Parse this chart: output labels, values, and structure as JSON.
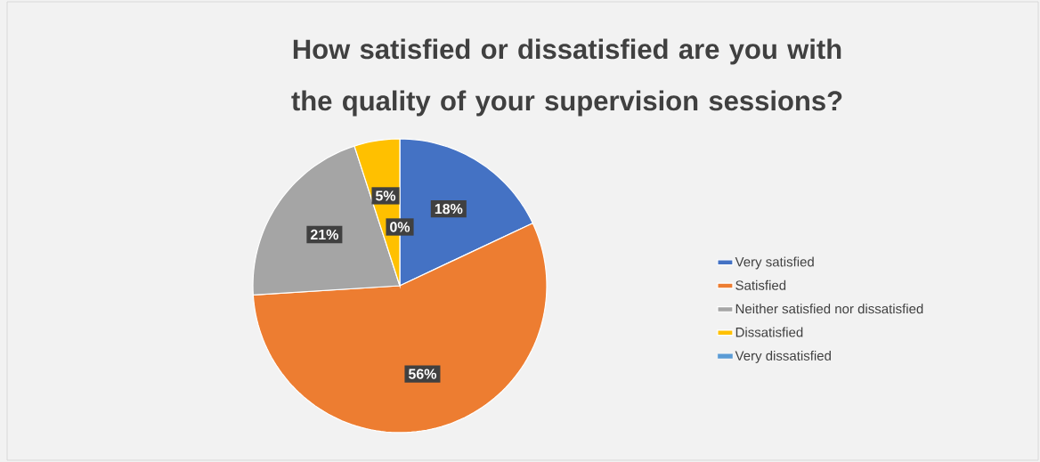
{
  "chart_data": {
    "type": "pie",
    "title": "How satisfied or dissatisfied are you with the quality of your supervision sessions?",
    "categories": [
      "Very satisfied",
      "Satisfied",
      "Neither satisfied nor dissatisfied",
      "Dissatisfied",
      "Very dissatisfied"
    ],
    "values": [
      18,
      56,
      21,
      5,
      0
    ],
    "value_labels": [
      "18%",
      "56%",
      "21%",
      "5%",
      "0%"
    ],
    "colors": [
      "#4472c4",
      "#ed7d31",
      "#a5a5a5",
      "#ffc000",
      "#5b9bd5"
    ],
    "legend": "right"
  }
}
